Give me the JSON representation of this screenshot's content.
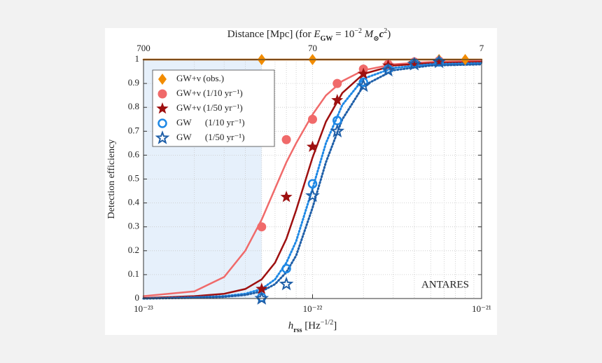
{
  "chart_data": {
    "type": "scatter",
    "ylabel": "Detection efficiency",
    "xlabel_parts": [
      "h",
      "rss",
      " [Hz",
      "−1/2",
      "]"
    ],
    "x2label_parts": [
      "Distance [Mpc] (for ",
      "E",
      "GW",
      " = 10",
      "−2",
      " M",
      "⊙",
      "c",
      "2",
      ")"
    ],
    "annotation": "ANTARES",
    "log_x": true,
    "grid": true,
    "legend": "upper left",
    "xlim": [
      1e-23,
      1e-21
    ],
    "xticks": [
      {
        "value": 1e-23,
        "label": "10⁻²³"
      },
      {
        "value": 1e-22,
        "label": "10⁻²²"
      },
      {
        "value": 1e-21,
        "label": "10⁻²¹"
      }
    ],
    "x2lim": [
      700,
      7
    ],
    "x2ticks": [
      700,
      70,
      7
    ],
    "ylim": [
      0,
      1
    ],
    "yticks": [
      0,
      0.1,
      0.2,
      0.3,
      0.4,
      0.5,
      0.6,
      0.7,
      0.8,
      0.9,
      1
    ],
    "shaded_region": {
      "color": "#e6f0fb",
      "x": [
        1e-23,
        5e-23
      ]
    },
    "series": [
      {
        "name": "GW+ν (obs.)",
        "color": "#f28c00",
        "marker": "diamond",
        "x": [
          5e-23,
          1e-22,
          5.6e-22,
          8e-22
        ],
        "values": [
          1,
          1,
          1,
          1
        ]
      },
      {
        "name": "GW+ν (1/10 yr⁻¹)",
        "color": "#f06a6a",
        "marker": "circle",
        "x": [
          5e-23,
          7e-23,
          1e-22,
          1.4e-22,
          2e-22,
          2.8e-22,
          4e-22,
          5.6e-22
        ],
        "values": [
          0.3,
          0.665,
          0.75,
          0.9,
          0.96,
          0.98,
          0.99,
          0.995
        ]
      },
      {
        "name": "GW+ν (1/50 yr⁻¹)",
        "color": "#9e1010",
        "marker": "star",
        "x": [
          5e-23,
          7e-23,
          1e-22,
          1.4e-22,
          2e-22,
          2.8e-22,
          4e-22,
          5.6e-22
        ],
        "values": [
          0.04,
          0.425,
          0.635,
          0.83,
          0.94,
          0.975,
          0.985,
          0.99
        ]
      },
      {
        "name": "GW      (1/10 yr⁻¹)",
        "color": "#1e88e5",
        "marker": "open-circle",
        "x": [
          5e-23,
          7e-23,
          1e-22,
          1.4e-22,
          2e-22,
          2.8e-22,
          4e-22,
          5.6e-22
        ],
        "values": [
          0.005,
          0.125,
          0.48,
          0.745,
          0.905,
          0.96,
          0.985,
          0.99
        ]
      },
      {
        "name": "GW      (1/50 yr⁻¹)",
        "color": "#1f5fa8",
        "marker": "open-star",
        "x": [
          5e-23,
          7e-23,
          1e-22,
          1.4e-22,
          2e-22,
          2.8e-22,
          4e-22,
          5.6e-22
        ],
        "values": [
          0.0,
          0.06,
          0.43,
          0.7,
          0.89,
          0.955,
          0.98,
          0.99
        ]
      }
    ],
    "fits": [
      {
        "color": "#c86400",
        "style": "solid",
        "x": [
          1e-23,
          1e-21
        ],
        "values": [
          1,
          1
        ]
      },
      {
        "color": "#f06a6a",
        "style": "solid",
        "x": [
          1e-23,
          2e-23,
          3e-23,
          4e-23,
          5e-23,
          6e-23,
          7e-23,
          8e-23,
          1e-22,
          1.2e-22,
          1.5e-22,
          2e-22,
          3e-22,
          5e-22,
          1e-21
        ],
        "values": [
          0.01,
          0.03,
          0.09,
          0.2,
          0.33,
          0.46,
          0.57,
          0.65,
          0.77,
          0.85,
          0.91,
          0.955,
          0.98,
          0.99,
          0.995
        ]
      },
      {
        "color": "#9e1010",
        "style": "solid",
        "x": [
          1e-23,
          2e-23,
          3e-23,
          4e-23,
          5e-23,
          6e-23,
          7e-23,
          8e-23,
          1e-22,
          1.2e-22,
          1.5e-22,
          2e-22,
          3e-22,
          5e-22,
          1e-21
        ],
        "values": [
          0.002,
          0.01,
          0.02,
          0.04,
          0.08,
          0.15,
          0.25,
          0.37,
          0.59,
          0.74,
          0.86,
          0.94,
          0.975,
          0.985,
          0.99
        ]
      },
      {
        "color": "#1e88e5",
        "style": "dotted",
        "x": [
          1e-23,
          2e-23,
          3e-23,
          4e-23,
          5e-23,
          6e-23,
          7e-23,
          8e-23,
          1e-22,
          1.2e-22,
          1.5e-22,
          2e-22,
          3e-22,
          5e-22,
          1e-21
        ],
        "values": [
          0,
          0.005,
          0.01,
          0.02,
          0.04,
          0.08,
          0.15,
          0.24,
          0.46,
          0.65,
          0.81,
          0.92,
          0.965,
          0.98,
          0.985
        ]
      },
      {
        "color": "#1f5fa8",
        "style": "dotted",
        "x": [
          1e-23,
          2e-23,
          3e-23,
          4e-23,
          5e-23,
          6e-23,
          7e-23,
          8e-23,
          1e-22,
          1.2e-22,
          1.5e-22,
          2e-22,
          3e-22,
          5e-22,
          1e-21
        ],
        "values": [
          0,
          0.003,
          0.007,
          0.015,
          0.03,
          0.06,
          0.11,
          0.18,
          0.38,
          0.57,
          0.75,
          0.89,
          0.955,
          0.975,
          0.98
        ]
      }
    ]
  }
}
